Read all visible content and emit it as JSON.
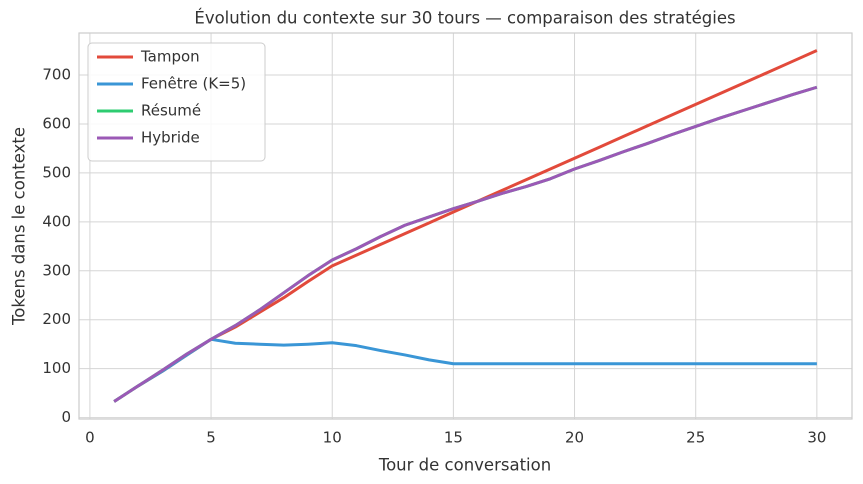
{
  "chart_data": {
    "type": "line",
    "title": "Évolution du contexte sur 30 tours — comparaison des stratégies",
    "x_label": "Tour de conversation",
    "y_label": "Tokens dans le contexte",
    "x": [
      1,
      2,
      3,
      4,
      5,
      6,
      7,
      8,
      9,
      10,
      11,
      12,
      13,
      14,
      15,
      16,
      17,
      18,
      19,
      20,
      21,
      22,
      23,
      24,
      25,
      26,
      27,
      28,
      29,
      30
    ],
    "series": [
      {
        "name": "Tampon",
        "color": "#e24a3b",
        "values": [
          33,
          65,
          95,
          128,
          160,
          185,
          215,
          245,
          278,
          310,
          332,
          354,
          376,
          398,
          420,
          442,
          464,
          486,
          508,
          530,
          552,
          574,
          596,
          618,
          640,
          662,
          684,
          706,
          728,
          750
        ]
      },
      {
        "name": "Fenêtre (K=5)",
        "color": "#3a96d6",
        "values": [
          33,
          65,
          95,
          128,
          160,
          152,
          150,
          148,
          150,
          153,
          147,
          137,
          128,
          118,
          110,
          110,
          110,
          110,
          110,
          110,
          110,
          110,
          110,
          110,
          110,
          110,
          110,
          110,
          110,
          110
        ]
      },
      {
        "name": "Résumé",
        "color": "#2ecc71",
        "values": [
          33,
          65,
          97,
          130,
          160,
          188,
          220,
          255,
          290,
          322,
          345,
          370,
          393,
          410,
          427,
          442,
          458,
          472,
          488,
          508,
          525,
          543,
          560,
          578,
          595,
          612,
          628,
          644,
          660,
          675
        ]
      },
      {
        "name": "Hybride",
        "color": "#9b59b6",
        "values": [
          33,
          65,
          97,
          130,
          160,
          188,
          220,
          255,
          290,
          322,
          345,
          370,
          393,
          410,
          427,
          442,
          458,
          472,
          488,
          508,
          525,
          543,
          560,
          578,
          595,
          612,
          628,
          644,
          660,
          675
        ]
      }
    ],
    "xlim": [
      -0.45,
      31.45
    ],
    "ylim": [
      -2.85,
      785.85
    ],
    "xticks": [
      0,
      5,
      10,
      15,
      20,
      25,
      30
    ],
    "yticks": [
      0,
      100,
      200,
      300,
      400,
      500,
      600,
      700
    ],
    "grid": true,
    "legend": "upper-left"
  }
}
